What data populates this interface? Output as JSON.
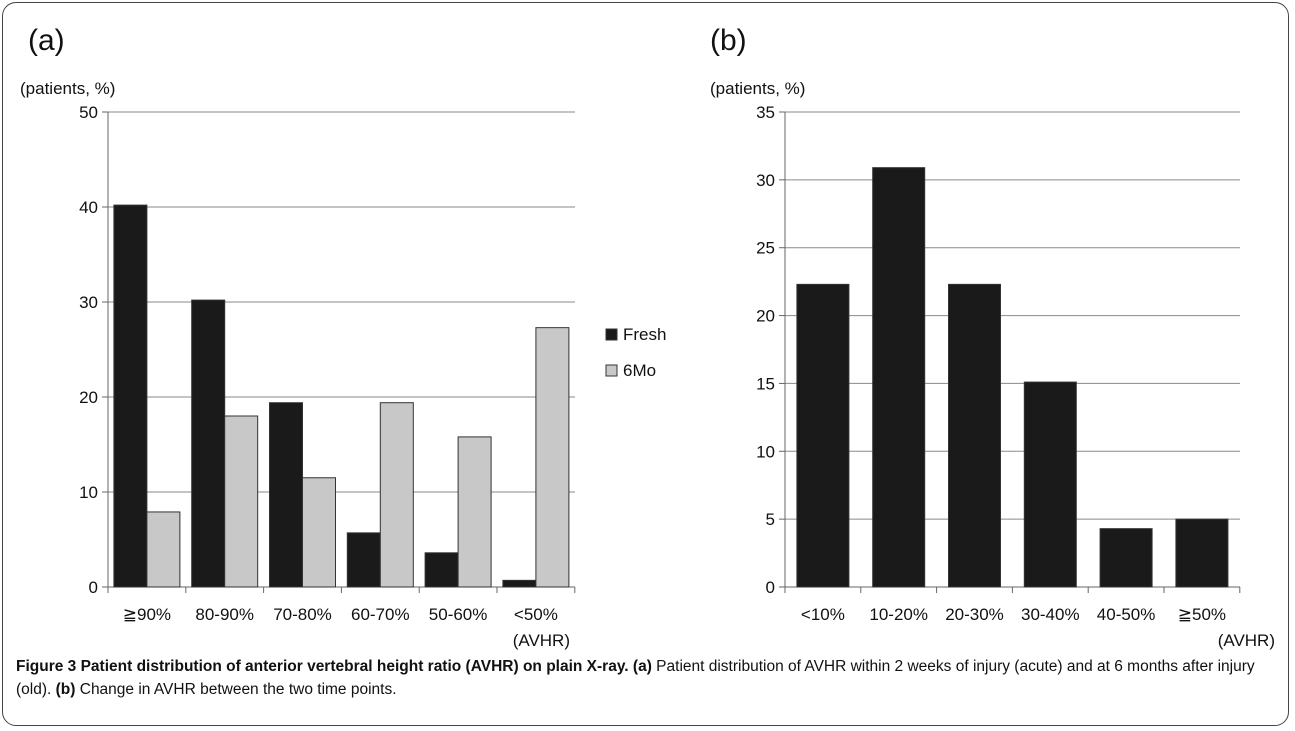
{
  "chart_data": [
    {
      "type": "bar",
      "panel_label": "(a)",
      "ylabel": "(patients, %)",
      "xlabel": "(AVHR)",
      "ylim": [
        0,
        50
      ],
      "yticks": [
        0,
        10,
        20,
        30,
        40,
        50
      ],
      "grid": true,
      "legend_position": "right",
      "categories": [
        "≧90%",
        "80-90%",
        "70-80%",
        "60-70%",
        "50-60%",
        "<50%"
      ],
      "series": [
        {
          "name": "Fresh",
          "color": "#1a1a1a",
          "values": [
            40.2,
            30.2,
            19.4,
            5.7,
            3.6,
            0.7
          ]
        },
        {
          "name": "6Mo",
          "color": "#c8c8c8",
          "values": [
            7.9,
            18.0,
            11.5,
            19.4,
            15.8,
            27.3
          ]
        }
      ]
    },
    {
      "type": "bar",
      "panel_label": "(b)",
      "ylabel": "(patients, %)",
      "xlabel": "(AVHR)",
      "ylim": [
        0,
        35
      ],
      "yticks": [
        0,
        5,
        10,
        15,
        20,
        25,
        30,
        35
      ],
      "grid": true,
      "categories": [
        "<10%",
        "10-20%",
        "20-30%",
        "30-40%",
        "40-50%",
        "≧50%"
      ],
      "series": [
        {
          "color": "#1a1a1a",
          "values": [
            22.3,
            30.9,
            22.3,
            15.1,
            4.3,
            5.0
          ]
        }
      ]
    }
  ],
  "caption": {
    "label": "Figure 3 Patient distribution of anterior vertebral height ratio (AVHR) on plain X-ray.",
    "a_tag": "(a)",
    "a_text": " Patient distribution of AVHR within 2 weeks of injury (acute) and at 6 months after injury (old).",
    "b_tag": "(b)",
    "b_text": " Change in AVHR between the two time points."
  }
}
